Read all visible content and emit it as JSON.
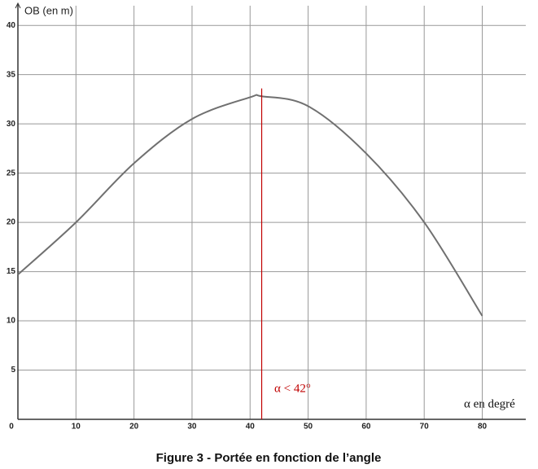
{
  "chart_data": {
    "type": "line",
    "y_label": "OB (en m)",
    "x_label": "α en degré",
    "caption": "Figure 3 - Portée en fonction de l’angle",
    "annotation": "α  < 42°",
    "x": [
      0,
      10,
      20,
      30,
      40,
      42,
      50,
      60,
      70,
      80
    ],
    "series": [
      {
        "color": "#707070",
        "values": [
          14.7,
          20,
          26,
          30.5,
          32.7,
          32.8,
          31.8,
          27,
          20,
          10.5
        ]
      }
    ],
    "vline": {
      "x": 42,
      "ymax": 33.6,
      "color": "#c00000"
    },
    "xlim": [
      0,
      87.5
    ],
    "ylim": [
      0,
      42
    ],
    "xticks": [
      0,
      10,
      20,
      30,
      40,
      50,
      60,
      70,
      80
    ],
    "yticks": [
      5,
      10,
      15,
      20,
      25,
      30,
      35,
      40
    ],
    "grid": true
  }
}
